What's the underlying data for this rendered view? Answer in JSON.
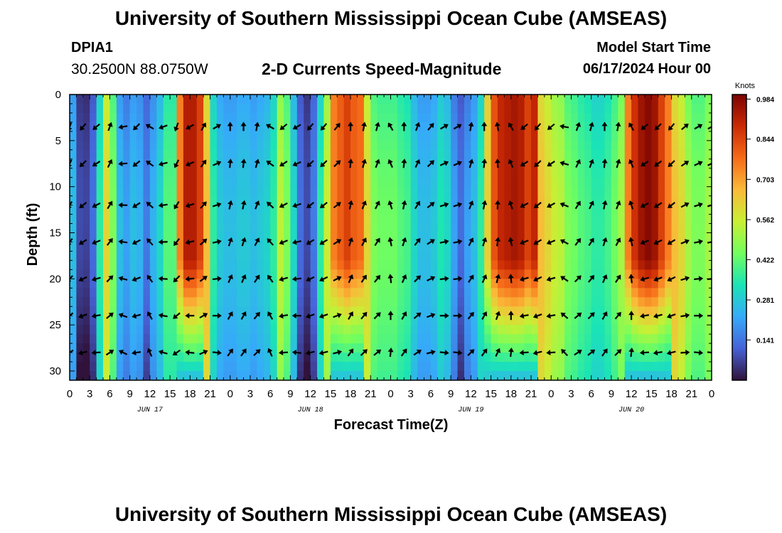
{
  "header": {
    "title": "University of Southern Mississippi Ocean Cube (AMSEAS)",
    "footer_title": "University of Southern Mississippi Ocean Cube (AMSEAS)",
    "station_id": "DPIA1",
    "station_coords": "30.2500N  88.0750W",
    "chart_title": "2-D Currents Speed-Magnitude",
    "model_start_label": "Model Start Time",
    "model_start_value": "06/17/2024 Hour 00"
  },
  "colors": {
    "scale": [
      "#30123b",
      "#4662d7",
      "#36aaf9",
      "#1ae4b6",
      "#72fe5e",
      "#c8ef34",
      "#faba39",
      "#f66b19",
      "#ca2a04",
      "#7a0403"
    ],
    "arrow": "#000000",
    "axis": "#000000"
  },
  "chart_data": {
    "type": "heatmap",
    "title": "2-D Currents Speed-Magnitude",
    "xlabel": "Forecast Time(Z)",
    "ylabel": "Depth (ft)",
    "x_hours": [
      0,
      3,
      6,
      9,
      12,
      15,
      18,
      21,
      24,
      27,
      30,
      33,
      36,
      39,
      42,
      45,
      48,
      51,
      54,
      57,
      60,
      63,
      66,
      69,
      72,
      75,
      78,
      81,
      84,
      87,
      90,
      93,
      96
    ],
    "x_tick_labels": [
      "0",
      "3",
      "6",
      "9",
      "12",
      "15",
      "18",
      "21",
      "0",
      "3",
      "6",
      "9",
      "12",
      "15",
      "18",
      "21",
      "0",
      "3",
      "6",
      "9",
      "12",
      "15",
      "18",
      "21",
      "0",
      "3",
      "6",
      "9",
      "12",
      "15",
      "18",
      "21",
      "0"
    ],
    "day_labels": [
      {
        "label": "JUN 17",
        "hour": 12
      },
      {
        "label": "JUN 18",
        "hour": 36
      },
      {
        "label": "JUN 19",
        "hour": 60
      },
      {
        "label": "JUN 20",
        "hour": 84
      }
    ],
    "y_ticks": [
      0,
      5,
      10,
      15,
      20,
      25,
      30
    ],
    "ylim": [
      0,
      31
    ],
    "xlim": [
      0,
      96
    ],
    "colorbar": {
      "unit": "Knots",
      "tick_labels": [
        "0.984",
        "0.844",
        "0.703",
        "0.562",
        "0.422",
        "0.281",
        "0.141"
      ],
      "tick_values": [
        0.984,
        0.844,
        0.703,
        0.562,
        0.422,
        0.281,
        0.141
      ],
      "range": [
        0,
        1.0
      ]
    },
    "speed_profile": {
      "hours": [
        0,
        1,
        2,
        3,
        4,
        5,
        6,
        7,
        8,
        9,
        10,
        11,
        12,
        13,
        14,
        15,
        16,
        17,
        18,
        19,
        20,
        21,
        22,
        23,
        24,
        25,
        26,
        27,
        28,
        29,
        30,
        31,
        32,
        33,
        34,
        35,
        36,
        37,
        38,
        39,
        40,
        41,
        42,
        43,
        44,
        45,
        46,
        47,
        48,
        49,
        50,
        51,
        52,
        53,
        54,
        55,
        56,
        57,
        58,
        59,
        60,
        61,
        62,
        63,
        64,
        65,
        66,
        67,
        68,
        69,
        70,
        71,
        72,
        73,
        74,
        75,
        76,
        77,
        78,
        79,
        80,
        81,
        82,
        83,
        84,
        85,
        86,
        87,
        88,
        89,
        90,
        91,
        92,
        93,
        94,
        95,
        96
      ],
      "depths": [
        0,
        2,
        4,
        6,
        8,
        10,
        12,
        14,
        16,
        18,
        20,
        22,
        24,
        26,
        28,
        30,
        31
      ],
      "surface_speed": [
        0.2,
        0.05,
        0.04,
        0.1,
        0.3,
        0.55,
        0.4,
        0.2,
        0.15,
        0.2,
        0.18,
        0.12,
        0.18,
        0.25,
        0.35,
        0.35,
        0.75,
        0.92,
        0.92,
        0.85,
        0.6,
        0.3,
        0.22,
        0.2,
        0.2,
        0.22,
        0.22,
        0.2,
        0.22,
        0.24,
        0.3,
        0.48,
        0.4,
        0.25,
        0.1,
        0.05,
        0.12,
        0.3,
        0.5,
        0.75,
        0.8,
        0.85,
        0.8,
        0.78,
        0.55,
        0.4,
        0.38,
        0.38,
        0.38,
        0.35,
        0.33,
        0.25,
        0.2,
        0.2,
        0.22,
        0.28,
        0.25,
        0.15,
        0.1,
        0.15,
        0.2,
        0.3,
        0.62,
        0.82,
        0.9,
        0.92,
        0.94,
        0.92,
        0.85,
        0.9,
        0.6,
        0.55,
        0.5,
        0.48,
        0.4,
        0.38,
        0.35,
        0.33,
        0.3,
        0.3,
        0.33,
        0.38,
        0.45,
        0.75,
        0.88,
        0.95,
        0.98,
        0.95,
        0.85,
        0.75,
        0.6,
        0.55,
        0.45,
        0.4,
        0.4,
        0.45,
        0.5
      ],
      "band_decay_depth_ft": [
        22,
        20,
        30,
        28,
        26
      ]
    },
    "arrow_depths": [
      3.5,
      7.5,
      12,
      16,
      20,
      24,
      28
    ],
    "arrow_hours": [
      0,
      2,
      4,
      6,
      8,
      10,
      12,
      14,
      16,
      18,
      20,
      22,
      24,
      26,
      28,
      30,
      32,
      34,
      36,
      38,
      40,
      42,
      44,
      46,
      48,
      50,
      52,
      54,
      56,
      58,
      60,
      62,
      64,
      66,
      68,
      70,
      72,
      74,
      76,
      78,
      80,
      82,
      84,
      86,
      88,
      90,
      92,
      94,
      96
    ],
    "arrow_directions_deg": [
      200,
      220,
      230,
      20,
      260,
      225,
      300,
      250,
      200,
      240,
      30,
      60,
      0,
      0,
      10,
      300,
      230,
      240,
      220,
      220,
      40,
      0,
      10,
      15,
      330,
      0,
      20,
      40,
      60,
      60,
      10,
      0,
      350,
      330,
      230,
      220,
      230,
      280,
      20,
      15,
      0,
      10,
      330,
      230,
      225,
      220,
      50,
      60,
      60
    ]
  }
}
